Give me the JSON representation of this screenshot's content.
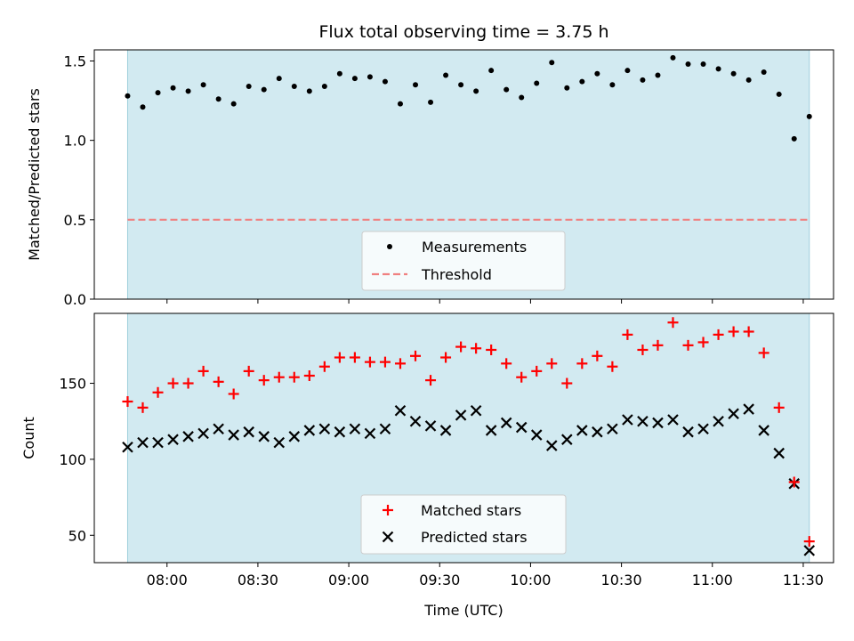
{
  "chart_data": [
    {
      "type": "scatter",
      "title": "Flux total observing time = 3.75 h",
      "ylabel": "Matched/Predicted stars",
      "xlabel": "",
      "ylim": [
        0,
        1.57
      ],
      "yticks": [
        0.0,
        0.5,
        1.0,
        1.5
      ],
      "ytick_labels": [
        "0.0",
        "0.5",
        "1.0",
        "1.5"
      ],
      "shaded_region": {
        "start": "07:47",
        "end": "11:32",
        "color": "#add8e6"
      },
      "series": [
        {
          "name": "Measurements",
          "marker": "dot",
          "color": "#000000",
          "x": [
            "07:47",
            "07:52",
            "07:57",
            "08:02",
            "08:07",
            "08:12",
            "08:17",
            "08:22",
            "08:27",
            "08:32",
            "08:37",
            "08:42",
            "08:47",
            "08:52",
            "08:57",
            "09:02",
            "09:07",
            "09:12",
            "09:17",
            "09:22",
            "09:27",
            "09:32",
            "09:37",
            "09:42",
            "09:47",
            "09:52",
            "09:57",
            "10:02",
            "10:07",
            "10:12",
            "10:17",
            "10:22",
            "10:27",
            "10:32",
            "10:37",
            "10:42",
            "10:47",
            "10:52",
            "10:57",
            "11:02",
            "11:07",
            "11:12",
            "11:17",
            "11:22",
            "11:27",
            "11:32"
          ],
          "values": [
            1.28,
            1.21,
            1.3,
            1.33,
            1.31,
            1.35,
            1.26,
            1.23,
            1.34,
            1.32,
            1.39,
            1.34,
            1.31,
            1.34,
            1.42,
            1.39,
            1.4,
            1.37,
            1.23,
            1.35,
            1.24,
            1.41,
            1.35,
            1.31,
            1.44,
            1.32,
            1.27,
            1.36,
            1.49,
            1.33,
            1.37,
            1.42,
            1.35,
            1.44,
            1.38,
            1.41,
            1.52,
            1.48,
            1.48,
            1.45,
            1.42,
            1.38,
            1.43,
            1.29,
            1.01,
            1.15
          ]
        },
        {
          "name": "Threshold",
          "marker": "dashed-line",
          "color": "#f08080",
          "x": [
            "07:47",
            "11:32"
          ],
          "values": [
            0.5,
            0.5
          ]
        }
      ],
      "legend": {
        "placement": "lower-center"
      }
    },
    {
      "type": "scatter",
      "title": "",
      "ylabel": "Count",
      "xlabel": "Time (UTC)",
      "ylim": [
        32,
        196
      ],
      "yticks": [
        50,
        100,
        150
      ],
      "ytick_labels": [
        "50",
        "100",
        "150"
      ],
      "xlim": [
        "07:36",
        "11:40"
      ],
      "xticks": [
        "08:00",
        "08:30",
        "09:00",
        "09:30",
        "10:00",
        "10:30",
        "11:00",
        "11:30"
      ],
      "shaded_region": {
        "start": "07:47",
        "end": "11:32",
        "color": "#add8e6"
      },
      "series": [
        {
          "name": "Matched stars",
          "marker": "plus",
          "color": "#ff0000",
          "x": [
            "07:47",
            "07:52",
            "07:57",
            "08:02",
            "08:07",
            "08:12",
            "08:17",
            "08:22",
            "08:27",
            "08:32",
            "08:37",
            "08:42",
            "08:47",
            "08:52",
            "08:57",
            "09:02",
            "09:07",
            "09:12",
            "09:17",
            "09:22",
            "09:27",
            "09:32",
            "09:37",
            "09:42",
            "09:47",
            "09:52",
            "09:57",
            "10:02",
            "10:07",
            "10:12",
            "10:17",
            "10:22",
            "10:27",
            "10:32",
            "10:37",
            "10:42",
            "10:47",
            "10:52",
            "10:57",
            "11:02",
            "11:07",
            "11:12",
            "11:17",
            "11:22",
            "11:27",
            "11:32"
          ],
          "values": [
            138,
            134,
            144,
            150,
            150,
            158,
            151,
            143,
            158,
            152,
            154,
            154,
            155,
            161,
            167,
            167,
            164,
            164,
            163,
            168,
            152,
            167,
            174,
            173,
            172,
            163,
            154,
            158,
            163,
            150,
            163,
            168,
            161,
            182,
            172,
            175,
            190,
            175,
            177,
            182,
            184,
            184,
            170,
            134,
            85,
            46
          ]
        },
        {
          "name": "Predicted stars",
          "marker": "x",
          "color": "#000000",
          "x": [
            "07:47",
            "07:52",
            "07:57",
            "08:02",
            "08:07",
            "08:12",
            "08:17",
            "08:22",
            "08:27",
            "08:32",
            "08:37",
            "08:42",
            "08:47",
            "08:52",
            "08:57",
            "09:02",
            "09:07",
            "09:12",
            "09:17",
            "09:22",
            "09:27",
            "09:32",
            "09:37",
            "09:42",
            "09:47",
            "09:52",
            "09:57",
            "10:02",
            "10:07",
            "10:12",
            "10:17",
            "10:22",
            "10:27",
            "10:32",
            "10:37",
            "10:42",
            "10:47",
            "10:52",
            "10:57",
            "11:02",
            "11:07",
            "11:12",
            "11:17",
            "11:22",
            "11:27",
            "11:32"
          ],
          "values": [
            108,
            111,
            111,
            113,
            115,
            117,
            120,
            116,
            118,
            115,
            111,
            115,
            119,
            120,
            118,
            120,
            117,
            120,
            132,
            125,
            122,
            119,
            129,
            132,
            119,
            124,
            121,
            116,
            109,
            113,
            119,
            118,
            120,
            126,
            125,
            124,
            126,
            118,
            120,
            125,
            130,
            133,
            119,
            104,
            84,
            40
          ]
        }
      ],
      "legend": {
        "placement": "lower-center"
      }
    }
  ]
}
